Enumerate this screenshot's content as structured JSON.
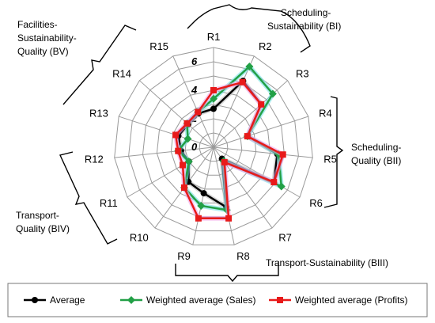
{
  "chart_data": {
    "type": "radar",
    "categories": [
      "R1",
      "R2",
      "R3",
      "R4",
      "R5",
      "R6",
      "R7",
      "R8",
      "R9",
      "R10",
      "R11",
      "R12",
      "R13",
      "R14",
      "R15"
    ],
    "rmax": 7,
    "ticks": [
      0,
      2,
      4,
      6
    ],
    "tick_labels": [
      "0",
      "2",
      "4",
      "6"
    ],
    "grid": true,
    "legend_position": "bottom",
    "series": [
      {
        "name": "Average",
        "color": "#000000",
        "marker": "circle",
        "values": [
          2.7,
          5.1,
          4.5,
          2.5,
          4.5,
          4.9,
          1.0,
          4.3,
          3.3,
          3.0,
          2.0,
          2.3,
          2.6,
          2.4,
          2.6
        ]
      },
      {
        "name": "Weighted average (Sales)",
        "color": "#22a046",
        "marker": "diamond",
        "values": [
          3.4,
          6.2,
          5.6,
          2.5,
          4.6,
          5.5,
          1.2,
          4.5,
          4.2,
          3.5,
          2.0,
          2.5,
          1.9,
          2.5,
          2.7
        ]
      },
      {
        "name": "Weighted average (Profits)",
        "color": "#e81a1a",
        "marker": "square",
        "values": [
          4.0,
          5.0,
          4.5,
          2.5,
          4.9,
          4.9,
          1.3,
          5.1,
          5.1,
          3.5,
          2.5,
          2.5,
          2.8,
          2.5,
          2.7
        ]
      }
    ],
    "groups": [
      {
        "label": [
          "Scheduling-",
          "Sustainability (BI)"
        ]
      },
      {
        "label": [
          "Scheduling-",
          "Quality (BII)"
        ]
      },
      {
        "label": [
          "Transport-Sustainability (BIII)"
        ]
      },
      {
        "label": [
          "Transport-",
          "Quality (BIV)"
        ]
      },
      {
        "label": [
          "Facilities-",
          "Sustainability-",
          "Quality (BV)"
        ]
      }
    ]
  }
}
